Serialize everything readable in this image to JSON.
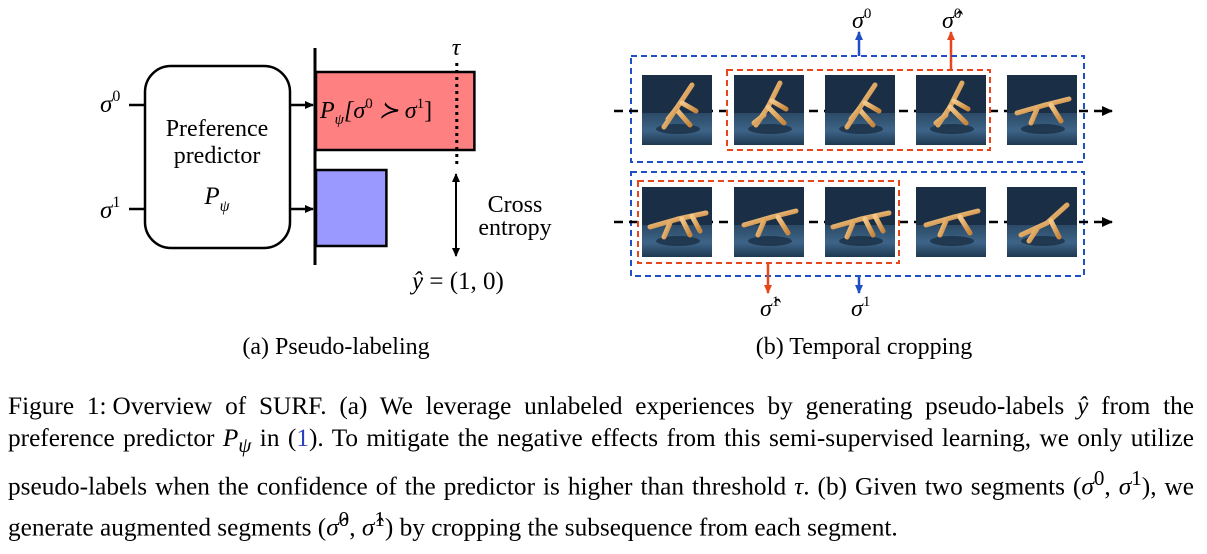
{
  "panel_a": {
    "caption": "(a) Pseudo-labeling",
    "predictor_title_1": "Preference",
    "predictor_title_2": "predictor",
    "predictor_symbol": "P",
    "predictor_symbol_sub": "ψ",
    "input_0_base": "σ",
    "input_0_sup": "0",
    "input_1_base": "σ",
    "input_1_sup": "1",
    "bar_text_p": "P",
    "bar_text_sub": "ψ",
    "bar_text_rest_a": "[σ",
    "bar_text_sup0": "0",
    "bar_text_rest_b": " ≻ σ",
    "bar_text_sup1": "1",
    "bar_text_close": "]",
    "threshold_label": "τ",
    "loss_label_1": "Cross",
    "loss_label_2": "entropy",
    "pseudo_label_lhs": "ŷ",
    "pseudo_label_rhs": " = (1, 0)",
    "colors": {
      "prob_bar": "#ff8080",
      "small_bar": "#9999ff"
    },
    "values": {
      "bar_0": 0.9,
      "bar_1": 0.4,
      "threshold": 0.8
    }
  },
  "panel_b": {
    "caption": "(b) Temporal cropping",
    "top_label_orig_base": "σ",
    "top_label_orig_sup": "0",
    "top_label_aug_base": "σ̂",
    "top_label_aug_sup": "0",
    "bottom_label_aug_base": "σ̂",
    "bottom_label_aug_sup": "1",
    "bottom_label_orig_base": "σ",
    "bottom_label_orig_sup": "1",
    "colors": {
      "orig_box": "#1f4fc4",
      "crop_box": "#e8451c",
      "orig_arrow": "#1f4fc4",
      "crop_arrow": "#e8451c"
    }
  },
  "caption": {
    "label": "Figure 1:",
    "part1": "Overview of SURF. (a) We leverage unlabeled experiences by generating pseudo-labels ",
    "sym_yhat": "ŷ",
    "part2": " from the preference predictor ",
    "sym_P": "P",
    "sym_psi": "ψ",
    "part3": " in (",
    "ref": "1",
    "part4": "). To mitigate the negative effects from this semi-supervised learning, we only utilize pseudo-labels when the confidence of the predictor is higher than threshold ",
    "sym_tau": "τ",
    "part5": ". (b) Given two segments (",
    "sym_s0": "σ",
    "sup0": "0",
    "comma1": ", ",
    "sym_s1": "σ",
    "sup1": "1",
    "part6": "), we generate augmented segments (",
    "sym_sh0": "σ̂",
    "suph0": "0",
    "comma2": ", ",
    "sym_sh1": "σ̂",
    "suph1": "1",
    "part7": ") by cropping the subsequence from each segment."
  }
}
